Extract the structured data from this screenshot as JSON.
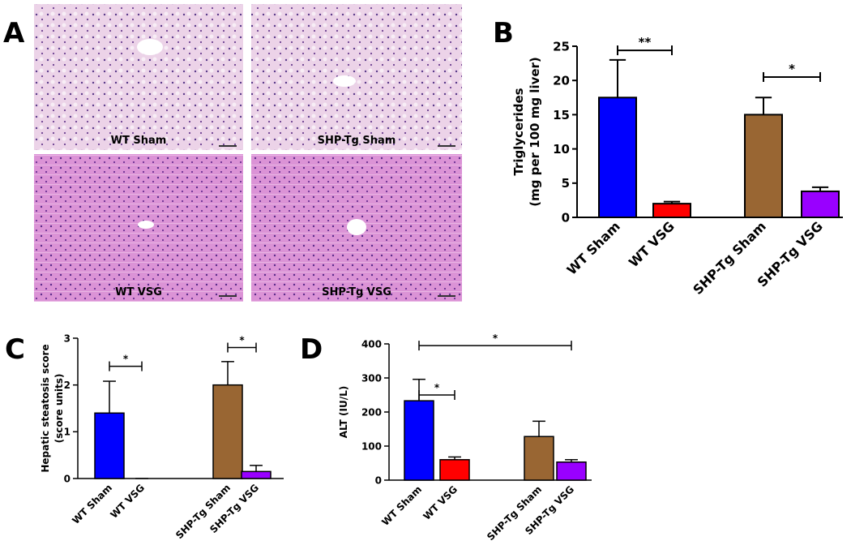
{
  "panel_letters": [
    "A",
    "B",
    "C",
    "D"
  ],
  "histology": {
    "labels": [
      "WT Sham",
      "SHP-Tg Sham",
      "WT VSG",
      "SHP-Tg VSG"
    ]
  },
  "chart_data": [
    {
      "type": "bar",
      "y_label": [
        "Triglycerides",
        "(mg per 100 mg liver)"
      ],
      "categories": [
        "WT Sham",
        "WT VSG",
        "SHP-Tg Sham",
        "SHP-Tg VSG"
      ],
      "values": [
        17.5,
        2.0,
        15.0,
        3.8
      ],
      "errors": [
        5.5,
        0.3,
        2.5,
        0.6
      ],
      "colors": [
        "#0000ff",
        "#ff0000",
        "#996633",
        "#9900ff"
      ],
      "ylim": [
        0,
        25
      ],
      "yticks": [
        0,
        5,
        10,
        15,
        20,
        25
      ],
      "annotations": [
        {
          "label": "**",
          "between": [
            "WT Sham",
            "WT VSG"
          ],
          "y": 24.4
        },
        {
          "label": "*",
          "between": [
            "SHP-Tg Sham",
            "SHP-Tg VSG"
          ],
          "y": 20.5
        }
      ]
    },
    {
      "type": "bar",
      "y_label": [
        "Hepatic steatosis score",
        "(score units)"
      ],
      "categories": [
        "WT Sham",
        "WT VSG",
        "SHP-Tg Sham",
        "SHP-Tg VSG"
      ],
      "values": [
        1.4,
        0,
        2.0,
        0.15
      ],
      "errors": [
        0.68,
        0,
        0.5,
        0.13
      ],
      "colors": [
        "#0000ff",
        "#ff0000",
        "#996633",
        "#9900ff"
      ],
      "ylim": [
        0,
        3
      ],
      "yticks": [
        0,
        1,
        2,
        3
      ],
      "annotations": [
        {
          "label": "*",
          "between": [
            "WT Sham",
            "WT VSG"
          ],
          "y": 2.4
        },
        {
          "label": "*",
          "between": [
            "SHP-Tg Sham",
            "SHP-Tg VSG"
          ],
          "y": 2.8
        }
      ]
    },
    {
      "type": "bar",
      "y_label": [
        "ALT (IU/L)"
      ],
      "categories": [
        "WT Sham",
        "WT VSG",
        "SHP-Tg Sham",
        "SHP-Tg VSG"
      ],
      "values": [
        233,
        60,
        128,
        53
      ],
      "errors": [
        63,
        8,
        45,
        7
      ],
      "colors": [
        "#0000ff",
        "#ff0000",
        "#996633",
        "#9900ff"
      ],
      "ylim": [
        0,
        400
      ],
      "yticks": [
        0,
        100,
        200,
        300,
        400
      ],
      "annotations": [
        {
          "label": "*",
          "between": [
            "WT Sham",
            "WT VSG"
          ],
          "y": 250
        },
        {
          "label": "*",
          "between": [
            "WT Sham",
            "SHP-Tg VSG"
          ],
          "y": 395
        }
      ]
    }
  ]
}
